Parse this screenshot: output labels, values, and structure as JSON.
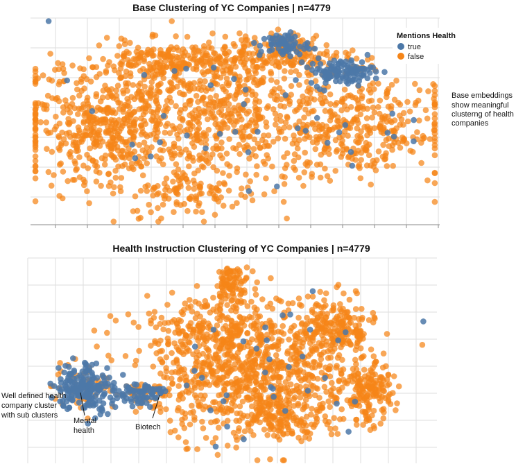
{
  "colors": {
    "true": "#4c78a8",
    "false": "#f58518"
  },
  "legend": {
    "title": "Mentions Health",
    "items": [
      {
        "label": "true",
        "color": "#4c78a8"
      },
      {
        "label": "false",
        "color": "#f58518"
      }
    ]
  },
  "chart_data": [
    {
      "type": "scatter",
      "title": "Base Clustering of YC Companies | n=4779",
      "xlabel": "",
      "ylabel": "",
      "grid": true,
      "legend_position": "top-right",
      "annotation": [
        "Base embeddings",
        "show meaningful",
        "clusterng of health",
        "companies"
      ],
      "xlim": [
        0,
        100
      ],
      "ylim": [
        0,
        100
      ],
      "clusters": [
        {
          "health": false,
          "n": 900,
          "cx": 45,
          "cy": 52,
          "sx": 24,
          "sy": 16
        },
        {
          "health": false,
          "n": 280,
          "cx": 18,
          "cy": 45,
          "sx": 8,
          "sy": 11
        },
        {
          "health": false,
          "n": 220,
          "cx": 35,
          "cy": 78,
          "sx": 11,
          "sy": 5
        },
        {
          "health": false,
          "n": 200,
          "cx": 82,
          "cy": 45,
          "sx": 9,
          "sy": 11
        },
        {
          "health": false,
          "n": 150,
          "cx": 60,
          "cy": 82,
          "sx": 10,
          "sy": 5
        },
        {
          "health": false,
          "n": 110,
          "cx": 40,
          "cy": 16,
          "sx": 8,
          "sy": 6
        },
        {
          "health": true,
          "n": 110,
          "cx": 76,
          "cy": 74,
          "sx": 4,
          "sy": 3
        },
        {
          "health": true,
          "n": 65,
          "cx": 62,
          "cy": 87,
          "sx": 3,
          "sy": 3
        },
        {
          "health": false,
          "n": 45,
          "cx": 62,
          "cy": 87,
          "sx": 3,
          "sy": 3
        },
        {
          "health": true,
          "n": 40,
          "cx": 48,
          "cy": 50,
          "sx": 22,
          "sy": 15
        }
      ]
    },
    {
      "type": "scatter",
      "title": "Health Instruction Clustering of YC Companies | n=4779",
      "xlabel": "",
      "ylabel": "",
      "grid": true,
      "annotations": [
        {
          "lines": [
            "Well defined health",
            "company cluster",
            "with sub clusters"
          ]
        },
        {
          "lines": [
            "Mental",
            "health"
          ]
        },
        {
          "lines": [
            "Biotech"
          ]
        }
      ],
      "xlim": [
        0,
        100
      ],
      "ylim": [
        0,
        100
      ],
      "clusters": [
        {
          "health": true,
          "n": 190,
          "cx": 14,
          "cy": 37,
          "sx": 3.5,
          "sy": 6
        },
        {
          "health": false,
          "n": 50,
          "cx": 14,
          "cy": 37,
          "sx": 4,
          "sy": 6
        },
        {
          "health": true,
          "n": 70,
          "cx": 27,
          "cy": 34,
          "sx": 3,
          "sy": 3
        },
        {
          "health": false,
          "n": 40,
          "cx": 27,
          "cy": 34,
          "sx": 3,
          "sy": 3
        },
        {
          "health": false,
          "n": 750,
          "cx": 55,
          "cy": 40,
          "sx": 12,
          "sy": 14
        },
        {
          "health": false,
          "n": 280,
          "cx": 47,
          "cy": 66,
          "sx": 11,
          "sy": 8
        },
        {
          "health": false,
          "n": 220,
          "cx": 75,
          "cy": 65,
          "sx": 5,
          "sy": 8
        },
        {
          "health": false,
          "n": 160,
          "cx": 83,
          "cy": 34,
          "sx": 3,
          "sy": 7
        },
        {
          "health": false,
          "n": 90,
          "cx": 62,
          "cy": 20,
          "sx": 6,
          "sy": 4
        },
        {
          "health": false,
          "n": 80,
          "cx": 50,
          "cy": 88,
          "sx": 2,
          "sy": 4
        },
        {
          "health": true,
          "n": 35,
          "cx": 58,
          "cy": 45,
          "sx": 16,
          "sy": 18
        }
      ]
    }
  ]
}
